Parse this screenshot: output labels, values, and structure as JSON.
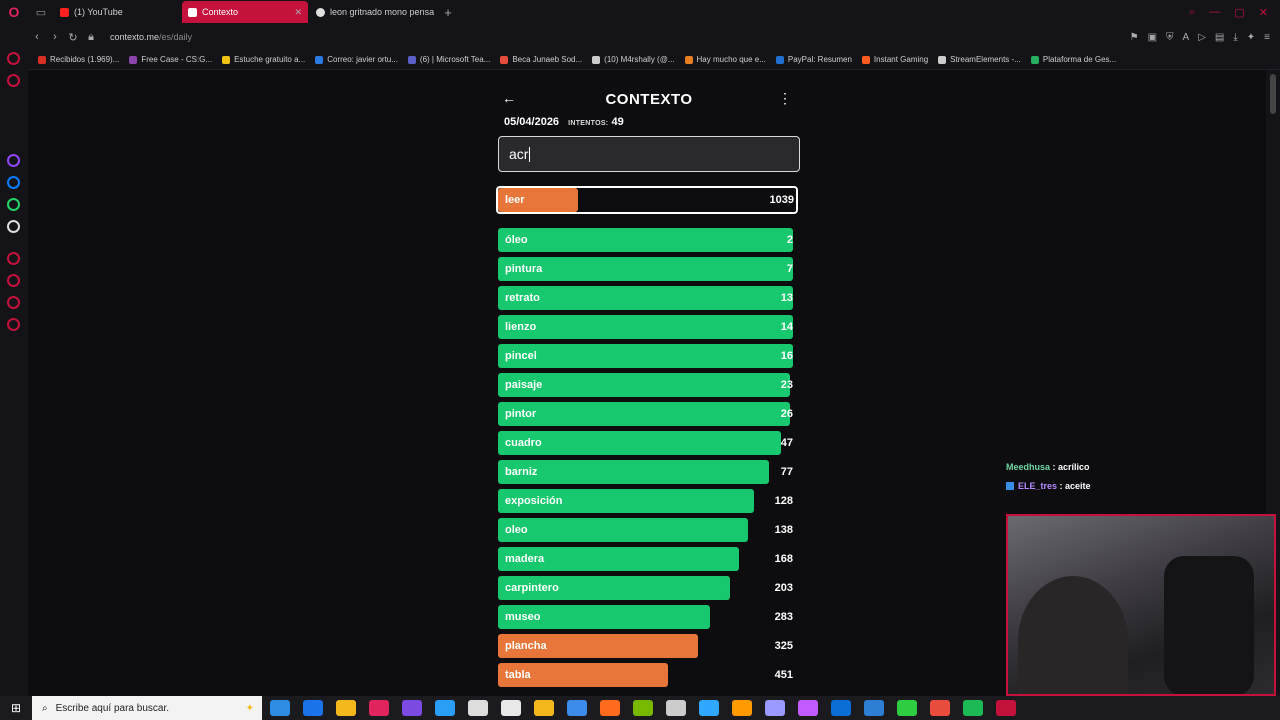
{
  "browser": {
    "tabs": [
      {
        "title": "(1) YouTube",
        "color": "#ff2020",
        "active": false
      },
      {
        "title": "Contexto",
        "color": "#ffffff",
        "active": true
      },
      {
        "title": "leon gritnado mono pensa",
        "color": "#e0e0e0",
        "active": false
      }
    ],
    "url_host": "contexto.me",
    "url_path": "/es/daily",
    "bookmarks": [
      {
        "label": "Recibidos (1.969)...",
        "color": "#d93025"
      },
      {
        "label": "Free Case - CS:G...",
        "color": "#8e44ad"
      },
      {
        "label": "Estuche gratuito a...",
        "color": "#f1c40f"
      },
      {
        "label": "Correo: javier ortu...",
        "color": "#2a7ae2"
      },
      {
        "label": "(6) | Microsoft Tea...",
        "color": "#5b5fc7"
      },
      {
        "label": "Beca Junaeb Sod...",
        "color": "#e74c3c"
      },
      {
        "label": "(10) M4rshally (@...",
        "color": "#cccccc"
      },
      {
        "label": "Hay mucho que e...",
        "color": "#e67e22"
      },
      {
        "label": "PayPal: Resumen",
        "color": "#1f6fd0"
      },
      {
        "label": "Instant Gaming",
        "color": "#ff5a1f"
      },
      {
        "label": "StreamElements -...",
        "color": "#cccccc"
      },
      {
        "label": "Plataforma de Ges...",
        "color": "#27ae60"
      }
    ]
  },
  "game": {
    "title": "CONTEXTO",
    "date": "05/04/2026",
    "attempts_label": "INTENTOS:",
    "attempts": "49",
    "input_value": "acr",
    "last_guess": {
      "word": "leer",
      "rank": "1039",
      "color": "orange",
      "fill": 0.27
    },
    "guesses": [
      {
        "word": "óleo",
        "rank": "2",
        "color": "green",
        "fill": 0.99
      },
      {
        "word": "pintura",
        "rank": "7",
        "color": "green",
        "fill": 0.99
      },
      {
        "word": "retrato",
        "rank": "13",
        "color": "green",
        "fill": 0.99
      },
      {
        "word": "lienzo",
        "rank": "14",
        "color": "green",
        "fill": 0.99
      },
      {
        "word": "pincel",
        "rank": "16",
        "color": "green",
        "fill": 0.99
      },
      {
        "word": "paisaje",
        "rank": "23",
        "color": "green",
        "fill": 0.98
      },
      {
        "word": "pintor",
        "rank": "26",
        "color": "green",
        "fill": 0.98
      },
      {
        "word": "cuadro",
        "rank": "47",
        "color": "green",
        "fill": 0.95
      },
      {
        "word": "barniz",
        "rank": "77",
        "color": "green",
        "fill": 0.91
      },
      {
        "word": "exposición",
        "rank": "128",
        "color": "green",
        "fill": 0.86
      },
      {
        "word": "oleo",
        "rank": "138",
        "color": "green",
        "fill": 0.84
      },
      {
        "word": "madera",
        "rank": "168",
        "color": "green",
        "fill": 0.81
      },
      {
        "word": "carpintero",
        "rank": "203",
        "color": "green",
        "fill": 0.78
      },
      {
        "word": "museo",
        "rank": "283",
        "color": "green",
        "fill": 0.71
      },
      {
        "word": "plancha",
        "rank": "325",
        "color": "orange",
        "fill": 0.67
      },
      {
        "word": "tabla",
        "rank": "451",
        "color": "orange",
        "fill": 0.57
      }
    ]
  },
  "chat": [
    {
      "user": "Meedhusa",
      "sep": " : ",
      "message": "acrílico",
      "badge": false
    },
    {
      "user": "ELE_tres",
      "sep": " : ",
      "message": "aceite",
      "badge": true
    }
  ],
  "taskbar": {
    "search_placeholder": "Escribe aquí para buscar.",
    "apps": [
      "#2f8de4",
      "#1a73e8",
      "#f2b81c",
      "#e0245e",
      "#7b4ae2",
      "#2a9df4",
      "#dddddd",
      "#e8e8e8",
      "#f2b81c",
      "#3b8ce8",
      "#ff6a1f",
      "#76b900",
      "#cccccc",
      "#31a8ff",
      "#ff9a00",
      "#9999ff",
      "#c25bff",
      "#0b6ed6",
      "#2d7fd6",
      "#2ecc40",
      "#e84c3d",
      "#1db954",
      "#c4123c"
    ]
  }
}
